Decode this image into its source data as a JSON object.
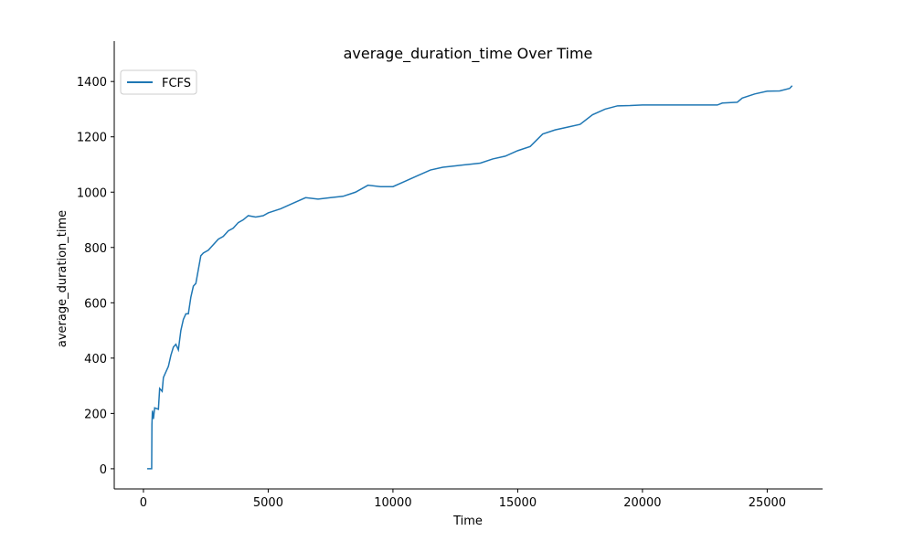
{
  "chart_data": {
    "type": "line",
    "title": "average_duration_time Over Time",
    "x_label": "Time",
    "y_label": "average_duration_time",
    "x": [
      150,
      330,
      340,
      360,
      400,
      450,
      600,
      650,
      750,
      800,
      900,
      1000,
      1100,
      1200,
      1300,
      1400,
      1500,
      1600,
      1700,
      1800,
      1900,
      2000,
      2100,
      2200,
      2300,
      2400,
      2600,
      2800,
      3000,
      3200,
      3400,
      3600,
      3800,
      4000,
      4200,
      4500,
      4800,
      5000,
      5500,
      6000,
      6500,
      7000,
      7500,
      8000,
      8500,
      9000,
      9500,
      10000,
      10500,
      11000,
      11500,
      12000,
      12500,
      13000,
      13500,
      14000,
      14500,
      15000,
      15500,
      16000,
      16500,
      17000,
      17500,
      18000,
      18500,
      19000,
      19500,
      20000,
      22000,
      23000,
      23200,
      23800,
      24000,
      24500,
      25000,
      25500,
      25900,
      26000
    ],
    "series": [
      {
        "name": "FCFS",
        "color": "#1f77b4",
        "values": [
          0,
          0,
          160,
          210,
          180,
          220,
          215,
          290,
          280,
          330,
          350,
          370,
          410,
          440,
          450,
          430,
          500,
          540,
          560,
          560,
          620,
          660,
          670,
          720,
          770,
          780,
          790,
          810,
          830,
          840,
          860,
          870,
          890,
          900,
          915,
          910,
          915,
          925,
          940,
          960,
          980,
          975,
          980,
          985,
          1000,
          1025,
          1020,
          1020,
          1040,
          1060,
          1080,
          1090,
          1095,
          1100,
          1105,
          1120,
          1130,
          1150,
          1165,
          1210,
          1225,
          1235,
          1245,
          1280,
          1300,
          1312,
          1313,
          1315,
          1315,
          1315,
          1322,
          1325,
          1340,
          1355,
          1365,
          1366,
          1375,
          1385
        ]
      }
    ],
    "xlim": [
      -1170,
      27220
    ],
    "ylim": [
      -73,
      1546
    ],
    "xticks": [
      0,
      5000,
      10000,
      15000,
      20000,
      25000
    ],
    "yticks": [
      0,
      200,
      400,
      600,
      800,
      1000,
      1200,
      1400
    ],
    "grid": false,
    "legend": "upper left"
  }
}
